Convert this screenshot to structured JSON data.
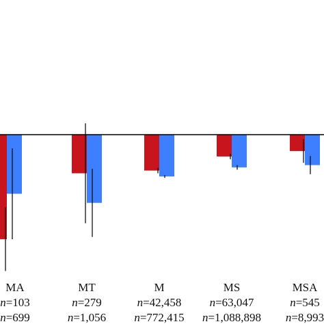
{
  "chart_data": {
    "type": "bar",
    "categories": [
      "MA",
      "MT",
      "M",
      "MS",
      "MSA"
    ],
    "series": [
      {
        "color": "#c8141c",
        "values": [
          -2.3,
          -0.85,
          -0.79,
          -0.48,
          -0.36
        ],
        "error": [
          0.7,
          1.1,
          0.06,
          0.06,
          0.26
        ],
        "n": [
          "n=103",
          "n=279",
          "n=42,458",
          "n=63,047",
          "n=545"
        ]
      },
      {
        "color": "#3d7fff",
        "values": [
          -1.3,
          -1.5,
          -0.92,
          -0.72,
          -0.67
        ],
        "error": [
          1.0,
          0.75,
          0.03,
          0.05,
          0.2
        ],
        "n": [
          "n=699",
          "n=1,056",
          "n=772,415",
          "n=1,088,898",
          "n=8,993"
        ]
      }
    ],
    "baseline": 0,
    "ylim": [
      -2.5,
      0.5
    ],
    "grid": false,
    "axis_line_color": "#000000"
  }
}
